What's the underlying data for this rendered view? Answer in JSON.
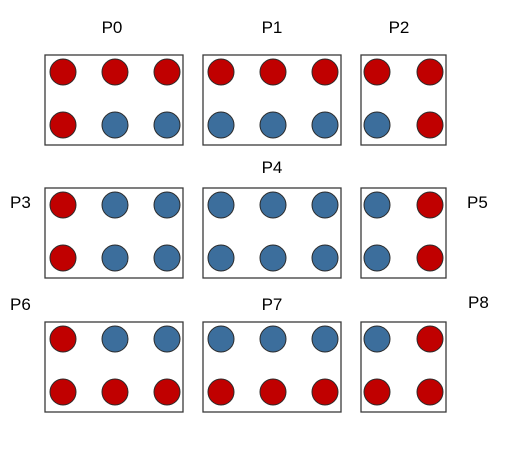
{
  "colors": {
    "red": "#c00000",
    "blue": "#3c6e9c"
  },
  "partitions": [
    {
      "label": "P0",
      "rows": [
        [
          "red",
          "red",
          "red"
        ],
        [
          "red",
          "blue",
          "blue"
        ]
      ]
    },
    {
      "label": "P1",
      "rows": [
        [
          "red",
          "red",
          "red"
        ],
        [
          "blue",
          "blue",
          "blue"
        ]
      ]
    },
    {
      "label": "P2",
      "rows": [
        [
          "red",
          "red"
        ],
        [
          "blue",
          "red"
        ]
      ]
    },
    {
      "label": "P3",
      "rows": [
        [
          "red",
          "blue",
          "blue"
        ],
        [
          "red",
          "blue",
          "blue"
        ]
      ]
    },
    {
      "label": "P4",
      "rows": [
        [
          "blue",
          "blue",
          "blue"
        ],
        [
          "blue",
          "blue",
          "blue"
        ]
      ]
    },
    {
      "label": "P5",
      "rows": [
        [
          "blue",
          "red"
        ],
        [
          "blue",
          "red"
        ]
      ]
    },
    {
      "label": "P6",
      "rows": [
        [
          "red",
          "blue",
          "blue"
        ],
        [
          "red",
          "red",
          "red"
        ]
      ]
    },
    {
      "label": "P7",
      "rows": [
        [
          "blue",
          "blue",
          "blue"
        ],
        [
          "red",
          "red",
          "red"
        ]
      ]
    },
    {
      "label": "P8",
      "rows": [
        [
          "blue",
          "red"
        ],
        [
          "red",
          "red"
        ]
      ]
    }
  ]
}
